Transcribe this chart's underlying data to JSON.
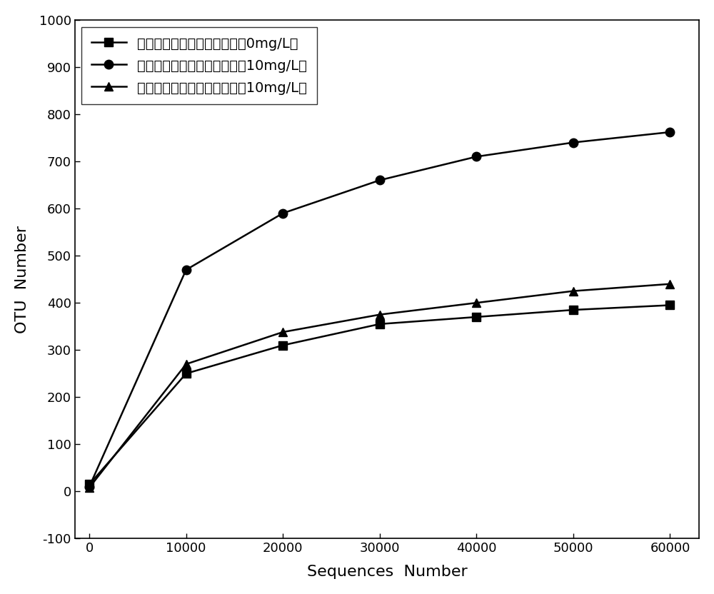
{
  "x": [
    0,
    10000,
    20000,
    30000,
    40000,
    50000,
    60000
  ],
  "series1_y": [
    15,
    250,
    310,
    355,
    370,
    385,
    395
  ],
  "series2_y": [
    10,
    470,
    590,
    660,
    710,
    740,
    762
  ],
  "series3_y": [
    8,
    270,
    338,
    375,
    400,
    425,
    440
  ],
  "series1_label": "藻菌共生体系（抗生素浓度为0mg/L）",
  "series2_label": "藻菌共生体系（抗生素浓度为10mg/L）",
  "series3_label": "活性污泥体系（抗生素浓度为10mg/L）",
  "xlabel": "Sequences  Number",
  "ylabel": "OTU  Number",
  "xlim": [
    -1500,
    63000
  ],
  "ylim": [
    -100,
    1000
  ],
  "yticks": [
    -100,
    0,
    100,
    200,
    300,
    400,
    500,
    600,
    700,
    800,
    900,
    1000
  ],
  "xticks": [
    0,
    10000,
    20000,
    30000,
    40000,
    50000,
    60000
  ],
  "line_color": "#000000",
  "marker1": "s",
  "marker2": "o",
  "marker3": "^",
  "markersize": 9,
  "linewidth": 1.8,
  "background_color": "#ffffff",
  "legend_fontsize": 14,
  "axis_fontsize": 16,
  "tick_fontsize": 13
}
